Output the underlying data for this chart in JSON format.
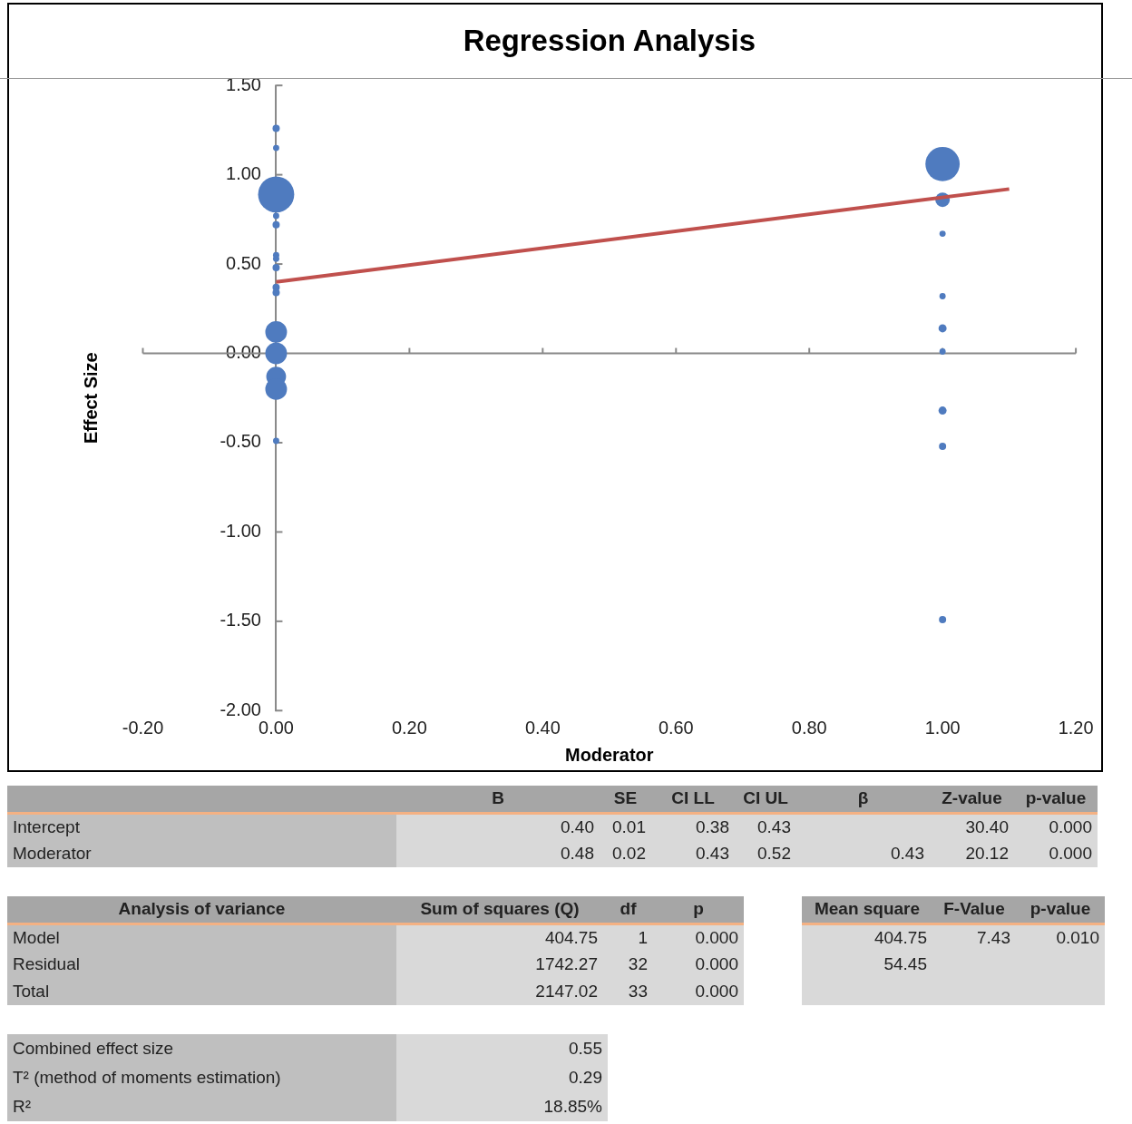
{
  "chart_data": [
    {
      "type": "bubble",
      "title": "Regression Analysis",
      "xlabel": "Moderator",
      "ylabel": "Effect Size",
      "xlim": [
        -0.2,
        1.2
      ],
      "xticks": [
        {
          "value": -0.2,
          "label": "-0.20"
        },
        {
          "value": 0,
          "label": "0.00"
        },
        {
          "value": 0.2,
          "label": "0.20"
        },
        {
          "value": 0.4,
          "label": "0.40"
        },
        {
          "value": 0.6,
          "label": "0.60"
        },
        {
          "value": 0.8,
          "label": "0.80"
        },
        {
          "value": 1,
          "label": "1.00"
        },
        {
          "value": 1.2,
          "label": "1.20"
        }
      ],
      "ylim": [
        -2,
        1.5
      ],
      "yticks": [
        {
          "value": -2,
          "label": "-2.00"
        },
        {
          "value": -1.5,
          "label": "-1.50"
        },
        {
          "value": -1,
          "label": "-1.00"
        },
        {
          "value": -0.5,
          "label": "-0.50"
        },
        {
          "value": 0,
          "label": "0.00"
        },
        {
          "value": 0.5,
          "label": "0.50"
        },
        {
          "value": 1,
          "label": "1.00"
        },
        {
          "value": 1.5,
          "label": "1.50"
        }
      ],
      "series": [
        {
          "type": "line",
          "color": "#c0504d",
          "x": [
            0,
            1.1
          ],
          "values": [
            0.4,
            0.92
          ]
        },
        {
          "type": "bubble",
          "color": "#4f7bbf",
          "x": [
            0,
            0,
            0,
            0,
            0,
            0,
            0,
            0,
            0,
            0,
            0,
            0,
            0,
            0,
            0,
            1,
            1,
            1,
            1,
            1,
            1,
            1,
            1,
            1
          ],
          "values": [
            1.26,
            1.15,
            0.89,
            0.77,
            0.72,
            0.55,
            0.53,
            0.48,
            0.37,
            0.34,
            0.12,
            0.0,
            -0.13,
            -0.2,
            -0.49,
            1.06,
            0.86,
            0.67,
            0.32,
            0.14,
            0.01,
            -0.32,
            -0.52,
            -1.49
          ],
          "sizes": [
            0.04,
            0.03,
            1,
            0.03,
            0.04,
            0.03,
            0.03,
            0.04,
            0.04,
            0.04,
            0.36,
            0.36,
            0.3,
            0.36,
            0.03,
            0.9,
            0.16,
            0.03,
            0.03,
            0.05,
            0.03,
            0.05,
            0.04,
            0.04
          ]
        }
      ]
    },
    {
      "type": "other",
      "categories": [
        "B",
        "SE",
        "CI LL",
        "CI UL",
        "β",
        "Z-value",
        "p-value"
      ],
      "y_categories": [
        "Intercept",
        "Moderator"
      ],
      "cell_labels": [
        [
          "0.40",
          "0.01",
          "0.38",
          "0.43",
          null,
          "30.40",
          "0.000"
        ],
        [
          "0.48",
          "0.02",
          "0.43",
          "0.52",
          "0.43",
          "20.12",
          "0.000"
        ]
      ]
    },
    {
      "type": "other",
      "title": "Analysis of variance",
      "categories": [
        "Sum of squares (Q)",
        "df",
        "p"
      ],
      "y_categories": [
        "Model",
        "Residual",
        "Total"
      ],
      "cell_labels": [
        [
          "404.75",
          "1",
          "0.000"
        ],
        [
          "1742.27",
          "32",
          "0.000"
        ],
        [
          "2147.02",
          "33",
          "0.000"
        ]
      ]
    },
    {
      "type": "other",
      "categories": [
        "Mean square",
        "F-Value",
        "p-value"
      ],
      "cell_labels": [
        [
          "404.75",
          "7.43",
          "0.010"
        ],
        [
          "54.45",
          null,
          null
        ],
        [
          null,
          null,
          null
        ]
      ]
    },
    {
      "type": "other",
      "y_categories": [
        "Combined effect size",
        "T² (method of moments estimation)",
        "R²"
      ],
      "cell_labels": [
        [
          "0.55"
        ],
        [
          "0.29"
        ],
        [
          "18.85%"
        ]
      ]
    }
  ]
}
